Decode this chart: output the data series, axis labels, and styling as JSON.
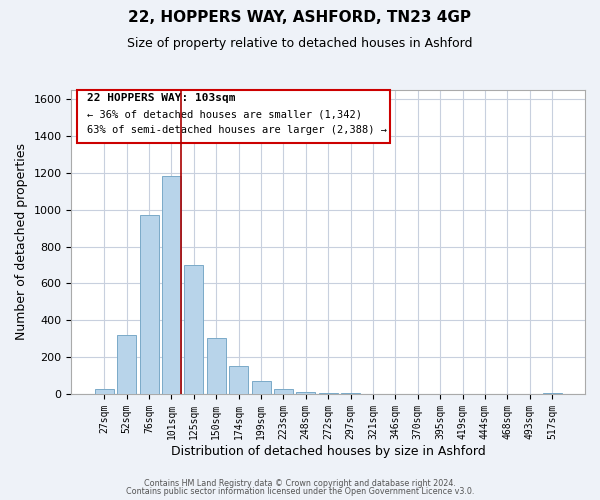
{
  "title1": "22, HOPPERS WAY, ASHFORD, TN23 4GP",
  "title2": "Size of property relative to detached houses in Ashford",
  "xlabel": "Distribution of detached houses by size in Ashford",
  "ylabel": "Number of detached properties",
  "bar_color": "#b8d4ea",
  "bar_edge_color": "#7aaac8",
  "categories": [
    "27sqm",
    "52sqm",
    "76sqm",
    "101sqm",
    "125sqm",
    "150sqm",
    "174sqm",
    "199sqm",
    "223sqm",
    "248sqm",
    "272sqm",
    "297sqm",
    "321sqm",
    "346sqm",
    "370sqm",
    "395sqm",
    "419sqm",
    "444sqm",
    "468sqm",
    "493sqm",
    "517sqm"
  ],
  "values": [
    25,
    320,
    970,
    1185,
    700,
    305,
    150,
    70,
    25,
    10,
    5,
    5,
    2,
    0,
    2,
    0,
    0,
    0,
    0,
    0,
    5
  ],
  "ylim": [
    0,
    1650
  ],
  "yticks": [
    0,
    200,
    400,
    600,
    800,
    1000,
    1200,
    1400,
    1600
  ],
  "prop_bar_index": 3,
  "annotation": {
    "label_bold": "22 HOPPERS WAY: 103sqm",
    "line1": "← 36% of detached houses are smaller (1,342)",
    "line2": "63% of semi-detached houses are larger (2,388) →",
    "box_edge_color": "#cc0000"
  },
  "footer1": "Contains HM Land Registry data © Crown copyright and database right 2024.",
  "footer2": "Contains public sector information licensed under the Open Government Licence v3.0.",
  "background_color": "#eef2f8",
  "plot_background": "white",
  "grid_color": "#c8d0de"
}
